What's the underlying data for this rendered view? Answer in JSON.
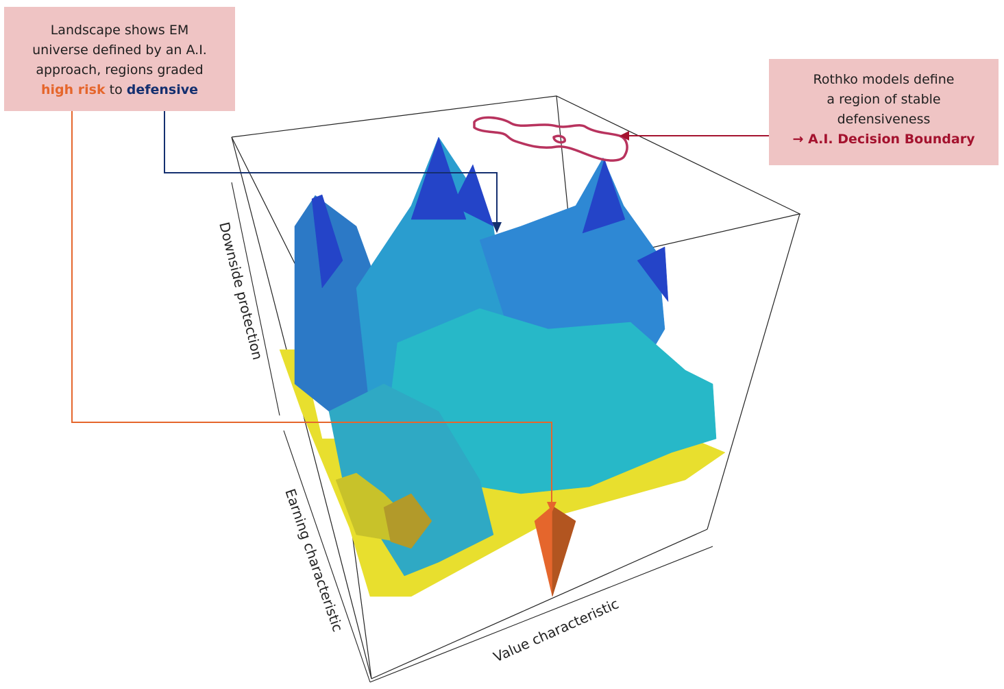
{
  "callout_left": {
    "line1": "Landscape shows EM",
    "line2": "universe defined by an A.I.",
    "line3": "approach, regions graded",
    "risk": "high risk",
    "to": " to ",
    "defensive": "defensive"
  },
  "callout_right": {
    "line1": "Rothko models define",
    "line2": "a region of stable",
    "line3": "defensiveness",
    "boundary": "→ A.I. Decision Boundary"
  },
  "chart_data": {
    "type": "surface",
    "title": "",
    "axes": {
      "x": "Value characteristic",
      "y": "Earning characteristic",
      "z": "Downside protection"
    },
    "grid": false,
    "colors": {
      "high_risk": "#e5662c",
      "low": "#e8df2e",
      "mid": "#2ab5cc",
      "defensive": "#2444c8",
      "boundary": "#b8335e",
      "arrow_left": "#e5662c",
      "arrow_mid": "#142f6f",
      "arrow_right": "#a4122e"
    }
  }
}
